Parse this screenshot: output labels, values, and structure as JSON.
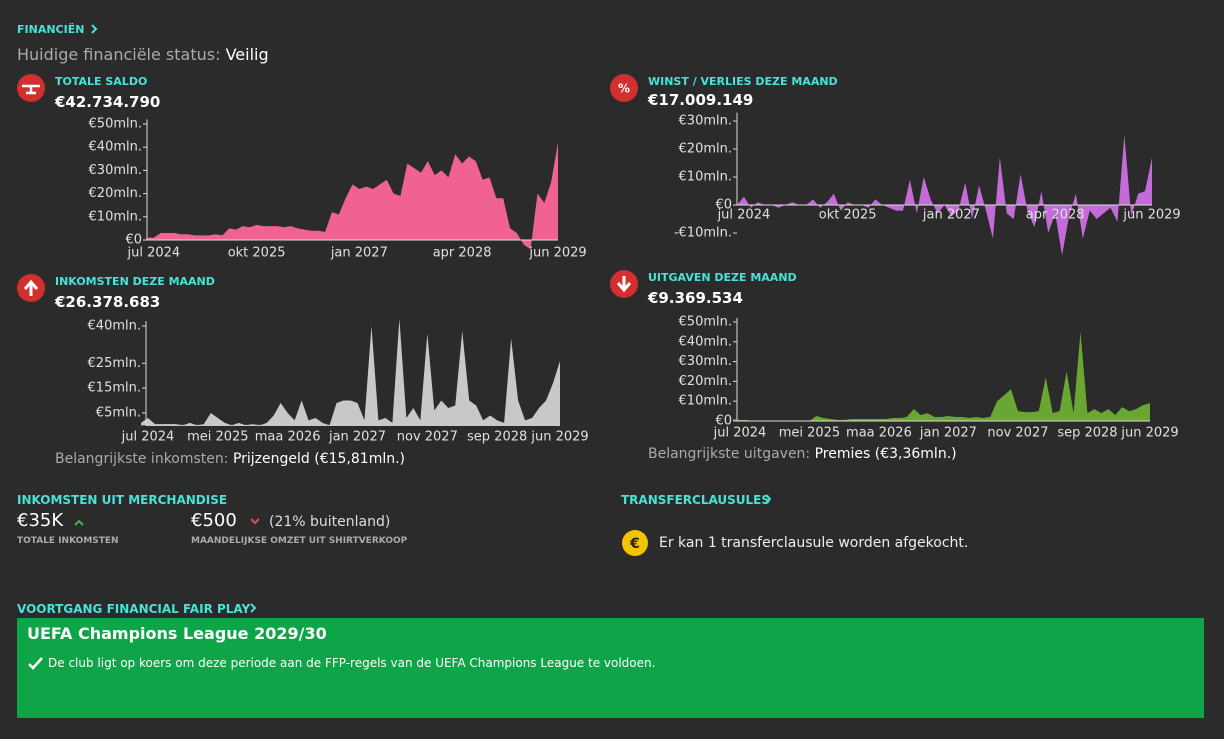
{
  "header": {
    "title": "FINANCIËN",
    "status_label": "Huidige financiële status:",
    "status_value": "Veilig"
  },
  "charts": [
    {
      "type": "area",
      "label": "TOTALE SALDO",
      "value": "€42.734.790",
      "color": "#f06292",
      "categories": [
        null,
        "jul 2024",
        null,
        null,
        null,
        null,
        null,
        null,
        null,
        null,
        null,
        null,
        null,
        null,
        null,
        null,
        "okt 2025",
        null,
        null,
        null,
        null,
        null,
        null,
        null,
        null,
        null,
        null,
        null,
        null,
        null,
        null,
        "jan 2027",
        null,
        null,
        null,
        null,
        null,
        null,
        null,
        null,
        null,
        null,
        null,
        null,
        null,
        null,
        "apr 2028",
        null,
        null,
        null,
        null,
        null,
        null,
        null,
        null,
        null,
        null,
        null,
        null,
        null,
        "jun 2029"
      ],
      "values": [
        1,
        1,
        3,
        3,
        3,
        2.5,
        2.5,
        2,
        2,
        2,
        2.5,
        2,
        5,
        4.5,
        6,
        5.5,
        6.5,
        6,
        6,
        6,
        5.5,
        6,
        5,
        4.5,
        4,
        4,
        3.5,
        12,
        11,
        18,
        24,
        22,
        23,
        22,
        24,
        26,
        20,
        19,
        33,
        31,
        29,
        34,
        28,
        30,
        27,
        37,
        33,
        36,
        34,
        26,
        27,
        18,
        18,
        5,
        3,
        -2,
        -4,
        20,
        16,
        25,
        42
      ],
      "ylim": [
        -5,
        52
      ],
      "yticks": [
        {
          "value": 0,
          "label": "€0"
        },
        {
          "value": 10,
          "label": "€10mln."
        },
        {
          "value": 20,
          "label": "€20mln."
        },
        {
          "value": 30,
          "label": "€30mln."
        },
        {
          "value": 40,
          "label": "€40mln."
        },
        {
          "value": 50,
          "label": "€50mln."
        }
      ]
    },
    {
      "type": "area",
      "label": "WINST / VERLIES DEZE MAAND",
      "value": "€17.009.149",
      "color": "#c36bd6",
      "categories": [
        null,
        "jul 2024",
        null,
        null,
        null,
        null,
        null,
        null,
        null,
        null,
        null,
        null,
        null,
        null,
        null,
        null,
        "okt 2025",
        null,
        null,
        null,
        null,
        null,
        null,
        null,
        null,
        null,
        null,
        null,
        null,
        null,
        null,
        "jan 2027",
        null,
        null,
        null,
        null,
        null,
        null,
        null,
        null,
        null,
        null,
        null,
        null,
        null,
        null,
        "apr 2028",
        null,
        null,
        null,
        null,
        null,
        null,
        null,
        null,
        null,
        null,
        null,
        null,
        null,
        "jun 2029"
      ],
      "values": [
        0,
        3,
        -1,
        1,
        0,
        0,
        -1,
        0,
        1,
        0,
        0,
        2,
        -1,
        1,
        4,
        -2,
        1,
        0,
        0,
        -1,
        2,
        0,
        -1,
        -2,
        -2,
        9,
        -3,
        10,
        2,
        -3,
        0,
        -4,
        -2,
        8,
        -5,
        7,
        -2,
        -12,
        17,
        -3,
        -5,
        11,
        -2,
        -8,
        5,
        -10,
        -3,
        -18,
        -4,
        4,
        -12,
        -2,
        -5,
        -3,
        -1,
        -6,
        25,
        -4,
        4,
        5,
        17
      ],
      "ylim": [
        -15,
        33
      ],
      "yticks": [
        {
          "value": -10,
          "label": "-€10mln."
        },
        {
          "value": 0,
          "label": "€0"
        },
        {
          "value": 10,
          "label": "€10mln."
        },
        {
          "value": 20,
          "label": "€20mln."
        },
        {
          "value": 30,
          "label": "€30mln."
        }
      ]
    },
    {
      "type": "area",
      "label": "INKOMSTEN DEZE MAAND",
      "value": "€26.378.683",
      "color": "#c8c8c8",
      "categories": [
        null,
        "jul 2024",
        null,
        null,
        null,
        null,
        null,
        null,
        null,
        null,
        null,
        "mei 2025",
        null,
        null,
        null,
        null,
        null,
        null,
        null,
        null,
        null,
        "maa 2026",
        null,
        null,
        null,
        null,
        null,
        null,
        null,
        null,
        null,
        "jan 2027",
        null,
        null,
        null,
        null,
        null,
        null,
        null,
        null,
        null,
        "nov 2027",
        null,
        null,
        null,
        null,
        null,
        null,
        null,
        null,
        null,
        "sep 2028",
        null,
        null,
        null,
        null,
        null,
        null,
        null,
        null,
        "jun 2029"
      ],
      "values": [
        1,
        3,
        0.5,
        0.5,
        0.5,
        0.5,
        0,
        1,
        0,
        0.5,
        5,
        3,
        1,
        0,
        1,
        0,
        0.5,
        0,
        1,
        4,
        9,
        5,
        2,
        10,
        2,
        3,
        1,
        0,
        9,
        10,
        10,
        9,
        2,
        40,
        2,
        3,
        1,
        43,
        3,
        7,
        2,
        37,
        6,
        10,
        7,
        8,
        38,
        10,
        8,
        2,
        4,
        2,
        1,
        35,
        10,
        2,
        3,
        7,
        10,
        17,
        26
      ],
      "ylim": [
        0,
        42
      ],
      "yticks": [
        {
          "value": 5,
          "label": "€5mln."
        },
        {
          "value": 15,
          "label": "€15mln."
        },
        {
          "value": 25,
          "label": "€25mln."
        },
        {
          "value": 40,
          "label": "€40mln."
        }
      ],
      "footer_label": "Belangrijkste inkomsten:",
      "footer_value": "Prijzengeld (€15,81mln.)"
    },
    {
      "type": "area",
      "label": "UITGAVEN DEZE MAAND",
      "value": "€9.369.534",
      "color": "#6aa632",
      "categories": [
        null,
        "jul 2024",
        null,
        null,
        null,
        null,
        null,
        null,
        null,
        null,
        null,
        "mei 2025",
        null,
        null,
        null,
        null,
        null,
        null,
        null,
        null,
        null,
        "maa 2026",
        null,
        null,
        null,
        null,
        null,
        null,
        null,
        null,
        null,
        "jan 2027",
        null,
        null,
        null,
        null,
        null,
        null,
        null,
        null,
        null,
        "nov 2027",
        null,
        null,
        null,
        null,
        null,
        null,
        null,
        null,
        null,
        "sep 2028",
        null,
        null,
        null,
        null,
        null,
        null,
        null,
        null,
        "jun 2029"
      ],
      "values": [
        1,
        0.5,
        0.5,
        0,
        0,
        0,
        0,
        0,
        0,
        0,
        0,
        0,
        2.5,
        1.5,
        1,
        0.5,
        0.5,
        1,
        1,
        1,
        1,
        1,
        1,
        1.5,
        1.5,
        2,
        6,
        3,
        4,
        2,
        2,
        2.5,
        2,
        2,
        1.5,
        2,
        1.5,
        2,
        10,
        13,
        16,
        5,
        4.5,
        4.5,
        5,
        22,
        4,
        5,
        25,
        4,
        45,
        4,
        6,
        4,
        6,
        3,
        7,
        5,
        6,
        8,
        9
      ],
      "ylim": [
        0,
        52
      ],
      "yticks": [
        {
          "value": 0,
          "label": "€0"
        },
        {
          "value": 10,
          "label": "€10mln."
        },
        {
          "value": 20,
          "label": "€20mln."
        },
        {
          "value": 30,
          "label": "€30mln."
        },
        {
          "value": 40,
          "label": "€40mln."
        },
        {
          "value": 50,
          "label": "€50mln."
        }
      ],
      "footer_label": "Belangrijkste uitgaven:",
      "footer_value": "Premies (€3,36mln.)"
    }
  ],
  "merchandise": {
    "title": "INKOMSTEN UIT MERCHANDISE",
    "total_value": "€35K",
    "total_label": "TOTALE INKOMSTEN",
    "monthly_value": "€500",
    "monthly_note": "(21% buitenland)",
    "monthly_label": "MAANDELIJKSE OMZET UIT SHIRTVERKOOP"
  },
  "transfer": {
    "title": "TRANSFERCLAUSULES",
    "message": "Er kan 1 transferclausule worden afgekocht."
  },
  "ffp": {
    "title": "VOORTGANG FINANCIAL FAIR PLAY",
    "competition": "UEFA Champions League 2029/30",
    "message": "De club ligt op koers om deze periode aan de FFP-regels van de UEFA Champions League te voldoen."
  }
}
